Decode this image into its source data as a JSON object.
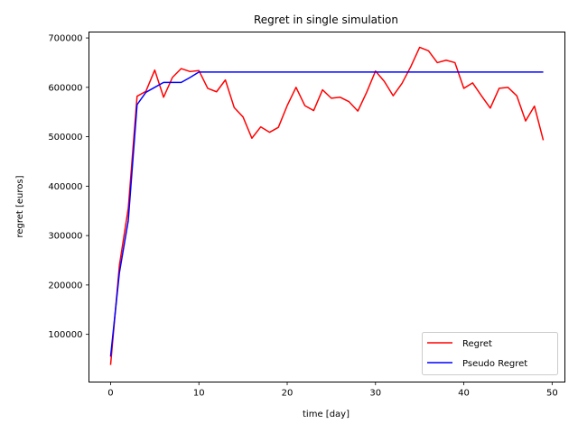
{
  "chart_data": {
    "type": "line",
    "title": "Regret in single simulation",
    "xlabel": "time [day]",
    "ylabel": "regret [euros]",
    "xlim": [
      -2.45,
      51.45
    ],
    "ylim": [
      3500,
      712000
    ],
    "xticks": [
      0,
      10,
      20,
      30,
      40,
      50
    ],
    "yticks": [
      100000,
      200000,
      300000,
      400000,
      500000,
      600000,
      700000
    ],
    "legend_position": "lower right",
    "grid": false,
    "x": [
      0,
      1,
      2,
      3,
      4,
      5,
      6,
      7,
      8,
      9,
      10,
      11,
      12,
      13,
      14,
      15,
      16,
      17,
      18,
      19,
      20,
      21,
      22,
      23,
      24,
      25,
      26,
      27,
      28,
      29,
      30,
      31,
      32,
      33,
      34,
      35,
      36,
      37,
      38,
      39,
      40,
      41,
      42,
      43,
      44,
      45,
      46,
      47,
      48,
      49
    ],
    "series": [
      {
        "name": "Regret",
        "color": "#ff0000",
        "values": [
          38000,
          240000,
          355000,
          582000,
          592000,
          635000,
          580000,
          620000,
          638000,
          632000,
          634000,
          598000,
          591000,
          615000,
          559000,
          540000,
          497000,
          520000,
          509000,
          519000,
          563000,
          600000,
          563000,
          553000,
          595000,
          578000,
          580000,
          571000,
          552000,
          590000,
          633000,
          612000,
          583000,
          608000,
          642000,
          681000,
          674000,
          650000,
          655000,
          650000,
          598000,
          609000,
          583000,
          558000,
          598000,
          600000,
          583000,
          532000,
          562000,
          493000
        ]
      },
      {
        "name": "Pseudo Regret",
        "color": "#0000ff",
        "values": [
          55000,
          225000,
          330000,
          565000,
          590000,
          600000,
          610000,
          610000,
          610000,
          620000,
          631000,
          631000,
          631000,
          631000,
          631000,
          631000,
          631000,
          631000,
          631000,
          631000,
          631000,
          631000,
          631000,
          631000,
          631000,
          631000,
          631000,
          631000,
          631000,
          631000,
          631000,
          631000,
          631000,
          631000,
          631000,
          631000,
          631000,
          631000,
          631000,
          631000,
          631000,
          631000,
          631000,
          631000,
          631000,
          631000,
          631000,
          631000,
          631000,
          631000
        ]
      }
    ]
  }
}
